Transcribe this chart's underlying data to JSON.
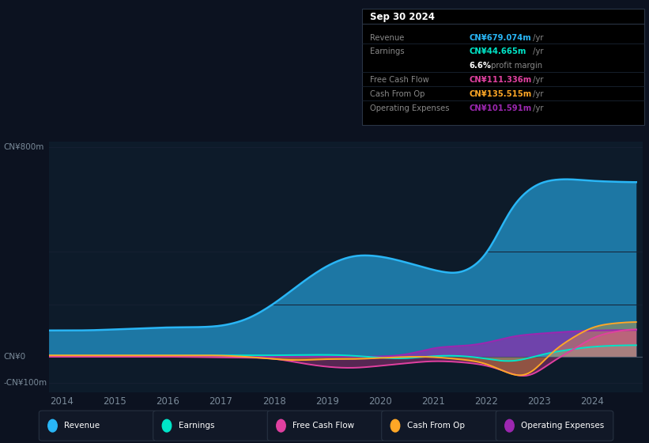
{
  "bg_color": "#0c1220",
  "chart_bg": "#0d1b2a",
  "colors": {
    "revenue": "#29b6f6",
    "earnings": "#00e5c8",
    "free_cash_flow": "#e040a0",
    "cash_from_op": "#ffa726",
    "operating_expenses": "#9c27b0"
  },
  "xlabel_ticks": [
    2014,
    2015,
    2016,
    2017,
    2018,
    2019,
    2020,
    2021,
    2022,
    2023,
    2024
  ],
  "ylabel_800": "CN¥800m",
  "ylabel_0": "CN¥0",
  "ylabel_neg100": "-CN¥100m",
  "info_title": "Sep 30 2024",
  "info_rows": [
    {
      "label": "Revenue",
      "value": "CN¥679.074m",
      "suffix": " /yr",
      "color": "#29b6f6"
    },
    {
      "label": "Earnings",
      "value": "CN¥44.665m",
      "suffix": " /yr",
      "color": "#00e5c8"
    },
    {
      "label": "",
      "value": "6.6%",
      "suffix": " profit margin",
      "color": "#ffffff"
    },
    {
      "label": "Free Cash Flow",
      "value": "CN¥111.336m",
      "suffix": " /yr",
      "color": "#e040a0"
    },
    {
      "label": "Cash From Op",
      "value": "CN¥135.515m",
      "suffix": " /yr",
      "color": "#ffa726"
    },
    {
      "label": "Operating Expenses",
      "value": "CN¥101.591m",
      "suffix": " /yr",
      "color": "#9c27b0"
    }
  ],
  "legend_items": [
    {
      "label": "Revenue",
      "color": "#29b6f6"
    },
    {
      "label": "Earnings",
      "color": "#00e5c8"
    },
    {
      "label": "Free Cash Flow",
      "color": "#e040a0"
    },
    {
      "label": "Cash From Op",
      "color": "#ffa726"
    },
    {
      "label": "Operating Expenses",
      "color": "#9c27b0"
    }
  ]
}
